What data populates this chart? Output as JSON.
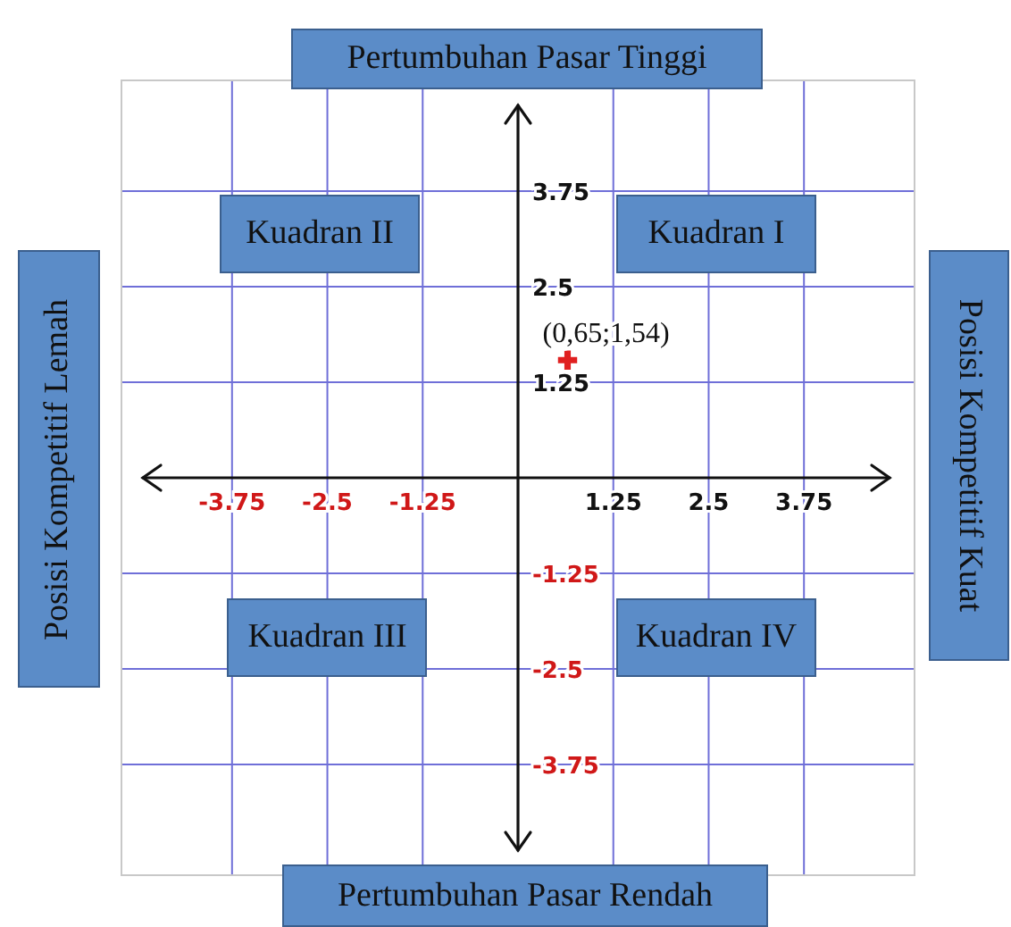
{
  "chart_data": {
    "type": "scatter",
    "title": "Pertumbuhan Pasar Tinggi",
    "xlabel": "Pertumbuhan Pasar Rendah",
    "ylabel": "Posisi Kompetitif Lemah",
    "y2label": "Posisi Kompetitif Kuat",
    "x": [
      0.65
    ],
    "values": [
      1.54
    ],
    "color": "#e02020",
    "marker": "cross",
    "xlim": [
      -5.2,
      5.2
    ],
    "ylim": [
      -5.2,
      5.2
    ],
    "xticks": [
      -3.75,
      -2.5,
      -1.25,
      1.25,
      2.5,
      3.75
    ],
    "yticks": [
      -3.75,
      -2.5,
      -1.25,
      1.25,
      2.5,
      3.75
    ],
    "grid": true,
    "annotations": [
      "Kuadran I",
      "Kuadran II",
      "Kuadran III",
      "Kuadran IV",
      {
        "text": "(0,65;1,54)",
        "x": 0.65,
        "y": 1.54
      }
    ]
  }
}
